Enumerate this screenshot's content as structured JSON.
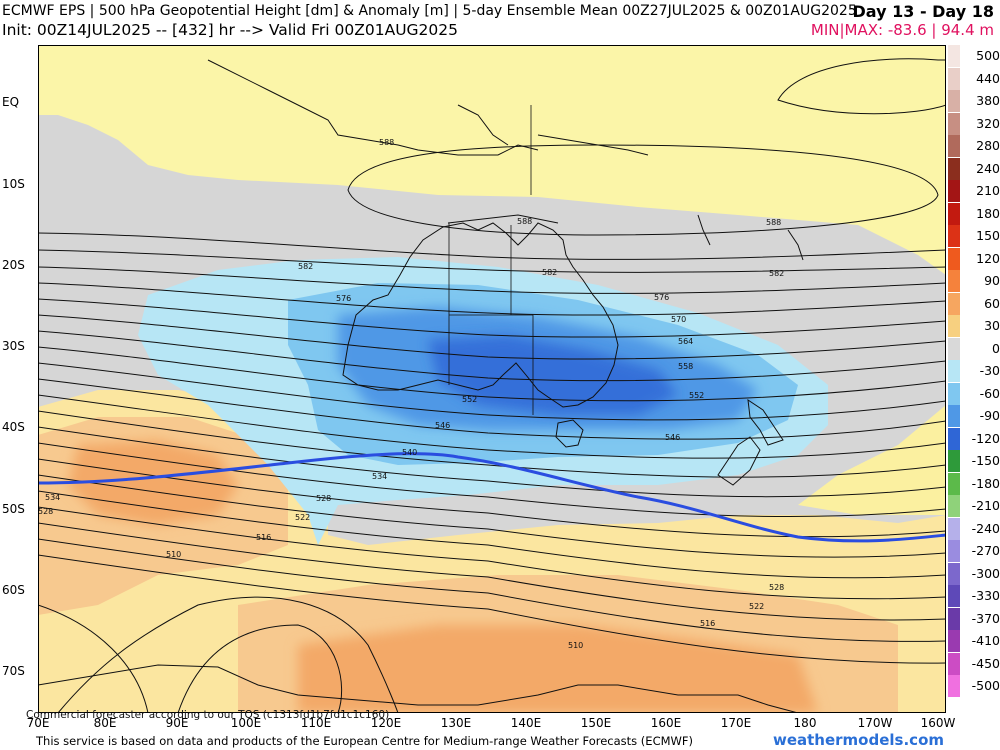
{
  "header": {
    "title": "ECMWF EPS | 500 hPa Geopotential Height [dm] & Anomaly [m] | 5-day Ensemble Mean 00Z27JUL2025 & 00Z01AUG2025",
    "init": "Init: 00Z14JUL2025 -- [432] hr --> Valid Fri 00Z01AUG2025",
    "days": "Day 13 - Day 18",
    "minmax": "MIN|MAX: -83.6 | 94.4 m"
  },
  "axes": {
    "lat_labels": [
      "EQ",
      "10S",
      "20S",
      "30S",
      "40S",
      "50S",
      "60S",
      "70S"
    ],
    "lon_labels": [
      "70E",
      "80E",
      "90E",
      "100E",
      "110E",
      "120E",
      "130E",
      "140E",
      "150E",
      "160E",
      "170E",
      "180",
      "170W",
      "160W"
    ]
  },
  "contour_labels": [
    {
      "text": "588"
    },
    {
      "text": "588"
    },
    {
      "text": "588"
    },
    {
      "text": "582"
    },
    {
      "text": "582"
    },
    {
      "text": "582"
    },
    {
      "text": "576"
    },
    {
      "text": "576"
    },
    {
      "text": "570"
    },
    {
      "text": "564"
    },
    {
      "text": "558"
    },
    {
      "text": "552"
    },
    {
      "text": "552"
    },
    {
      "text": "546"
    },
    {
      "text": "546"
    },
    {
      "text": "540"
    },
    {
      "text": "534"
    },
    {
      "text": "534"
    },
    {
      "text": "528"
    },
    {
      "text": "528"
    },
    {
      "text": "522"
    },
    {
      "text": "516"
    },
    {
      "text": "510"
    },
    {
      "text": "528"
    },
    {
      "text": "522"
    },
    {
      "text": "516"
    },
    {
      "text": "510"
    }
  ],
  "colorbar": {
    "labels": [
      "500",
      "440",
      "380",
      "320",
      "280",
      "240",
      "210",
      "180",
      "150",
      "120",
      "90",
      "60",
      "30",
      "0",
      "-30",
      "-60",
      "-90",
      "-120",
      "-150",
      "-180",
      "-210",
      "-240",
      "-270",
      "-300",
      "-330",
      "-370",
      "-410",
      "-450",
      "-500"
    ],
    "colors": [
      "#f4e6e2",
      "#e9cfc8",
      "#d8b0a6",
      "#c78f83",
      "#b06a5c",
      "#8b2e1e",
      "#a31515",
      "#c21a10",
      "#dc3216",
      "#ef5a1e",
      "#f5823c",
      "#f6a660",
      "#f7d080",
      "#d9d9d9",
      "#b7e6f5",
      "#7fc7f0",
      "#4f98e6",
      "#2f66d6",
      "#2e9a3a",
      "#5cba4a",
      "#8fd27a",
      "#b5b0ea",
      "#9a8ce0",
      "#7c68cc",
      "#5e49b8",
      "#6a3aa8",
      "#9a3ab0",
      "#cc4cc4",
      "#f070e0"
    ]
  },
  "footer": {
    "commercial": "Commercial forecaster according to our TOS (c1313fd1b7fd1c1c160)",
    "credit": "This service is based on data and products of the European Centre for Medium-range Weather Forecasts (ECMWF)",
    "brand": "weathermodels.com"
  }
}
